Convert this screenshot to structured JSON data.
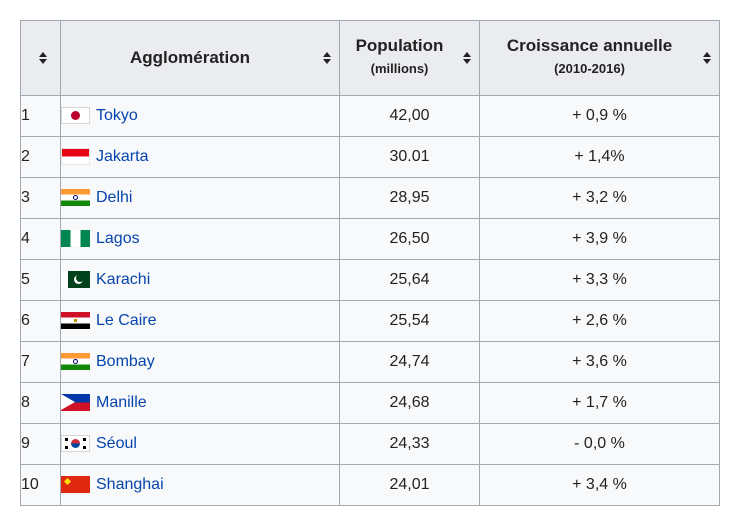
{
  "table": {
    "headers": {
      "rank": "",
      "city": "Agglomération",
      "population": "Population",
      "population_unit": "(millions)",
      "growth": "Croissance annuelle",
      "growth_period": "(2010-2016)"
    },
    "rows": [
      {
        "rank": "1",
        "flag": "japan-flag-icon",
        "city": "Tokyo",
        "population": "42,00",
        "growth": "+ 0,9 %"
      },
      {
        "rank": "2",
        "flag": "indonesia-flag-icon",
        "city": "Jakarta",
        "population": "30.01",
        "growth": "+ 1,4%"
      },
      {
        "rank": "3",
        "flag": "india-flag-icon",
        "city": "Delhi",
        "population": "28,95",
        "growth": "+ 3,2 %"
      },
      {
        "rank": "4",
        "flag": "nigeria-flag-icon",
        "city": "Lagos",
        "population": "26,50",
        "growth": "+ 3,9 %"
      },
      {
        "rank": "5",
        "flag": "pakistan-flag-icon",
        "city": "Karachi",
        "population": "25,64",
        "growth": "+ 3,3 %"
      },
      {
        "rank": "6",
        "flag": "egypt-flag-icon",
        "city": "Le Caire",
        "population": "25,54",
        "growth": "+ 2,6 %"
      },
      {
        "rank": "7",
        "flag": "india-flag-icon",
        "city": "Bombay",
        "population": "24,74",
        "growth": "+ 3,6 %"
      },
      {
        "rank": "8",
        "flag": "philippines-flag-icon",
        "city": "Manille",
        "population": "24,68",
        "growth": "+ 1,7 %"
      },
      {
        "rank": "9",
        "flag": "south-korea-flag-icon",
        "city": "Séoul",
        "population": "24,33",
        "growth": "- 0,0 %"
      },
      {
        "rank": "10",
        "flag": "china-flag-icon",
        "city": "Shanghai",
        "population": "24,01",
        "growth": "+ 3,4 %"
      }
    ]
  },
  "icons": {
    "sort": "sort-icon"
  },
  "colors": {
    "link": "#0645ad",
    "header_bg": "#eaecf0",
    "cell_bg": "#f8f9fa",
    "border": "#a2a9b1"
  }
}
